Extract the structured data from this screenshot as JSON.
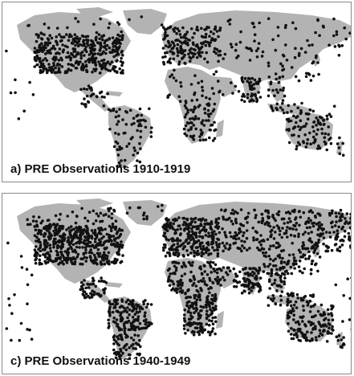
{
  "colors": {
    "land": "#b3b3b3",
    "station": "#111111",
    "frame": "#8a8a8a",
    "background": "#ffffff"
  },
  "panels": [
    {
      "label": "a) PRE Observations 1910-1919",
      "density": 0.55
    },
    {
      "label": "c) PRE Observations 1940-1949",
      "density": 1.0
    }
  ]
}
